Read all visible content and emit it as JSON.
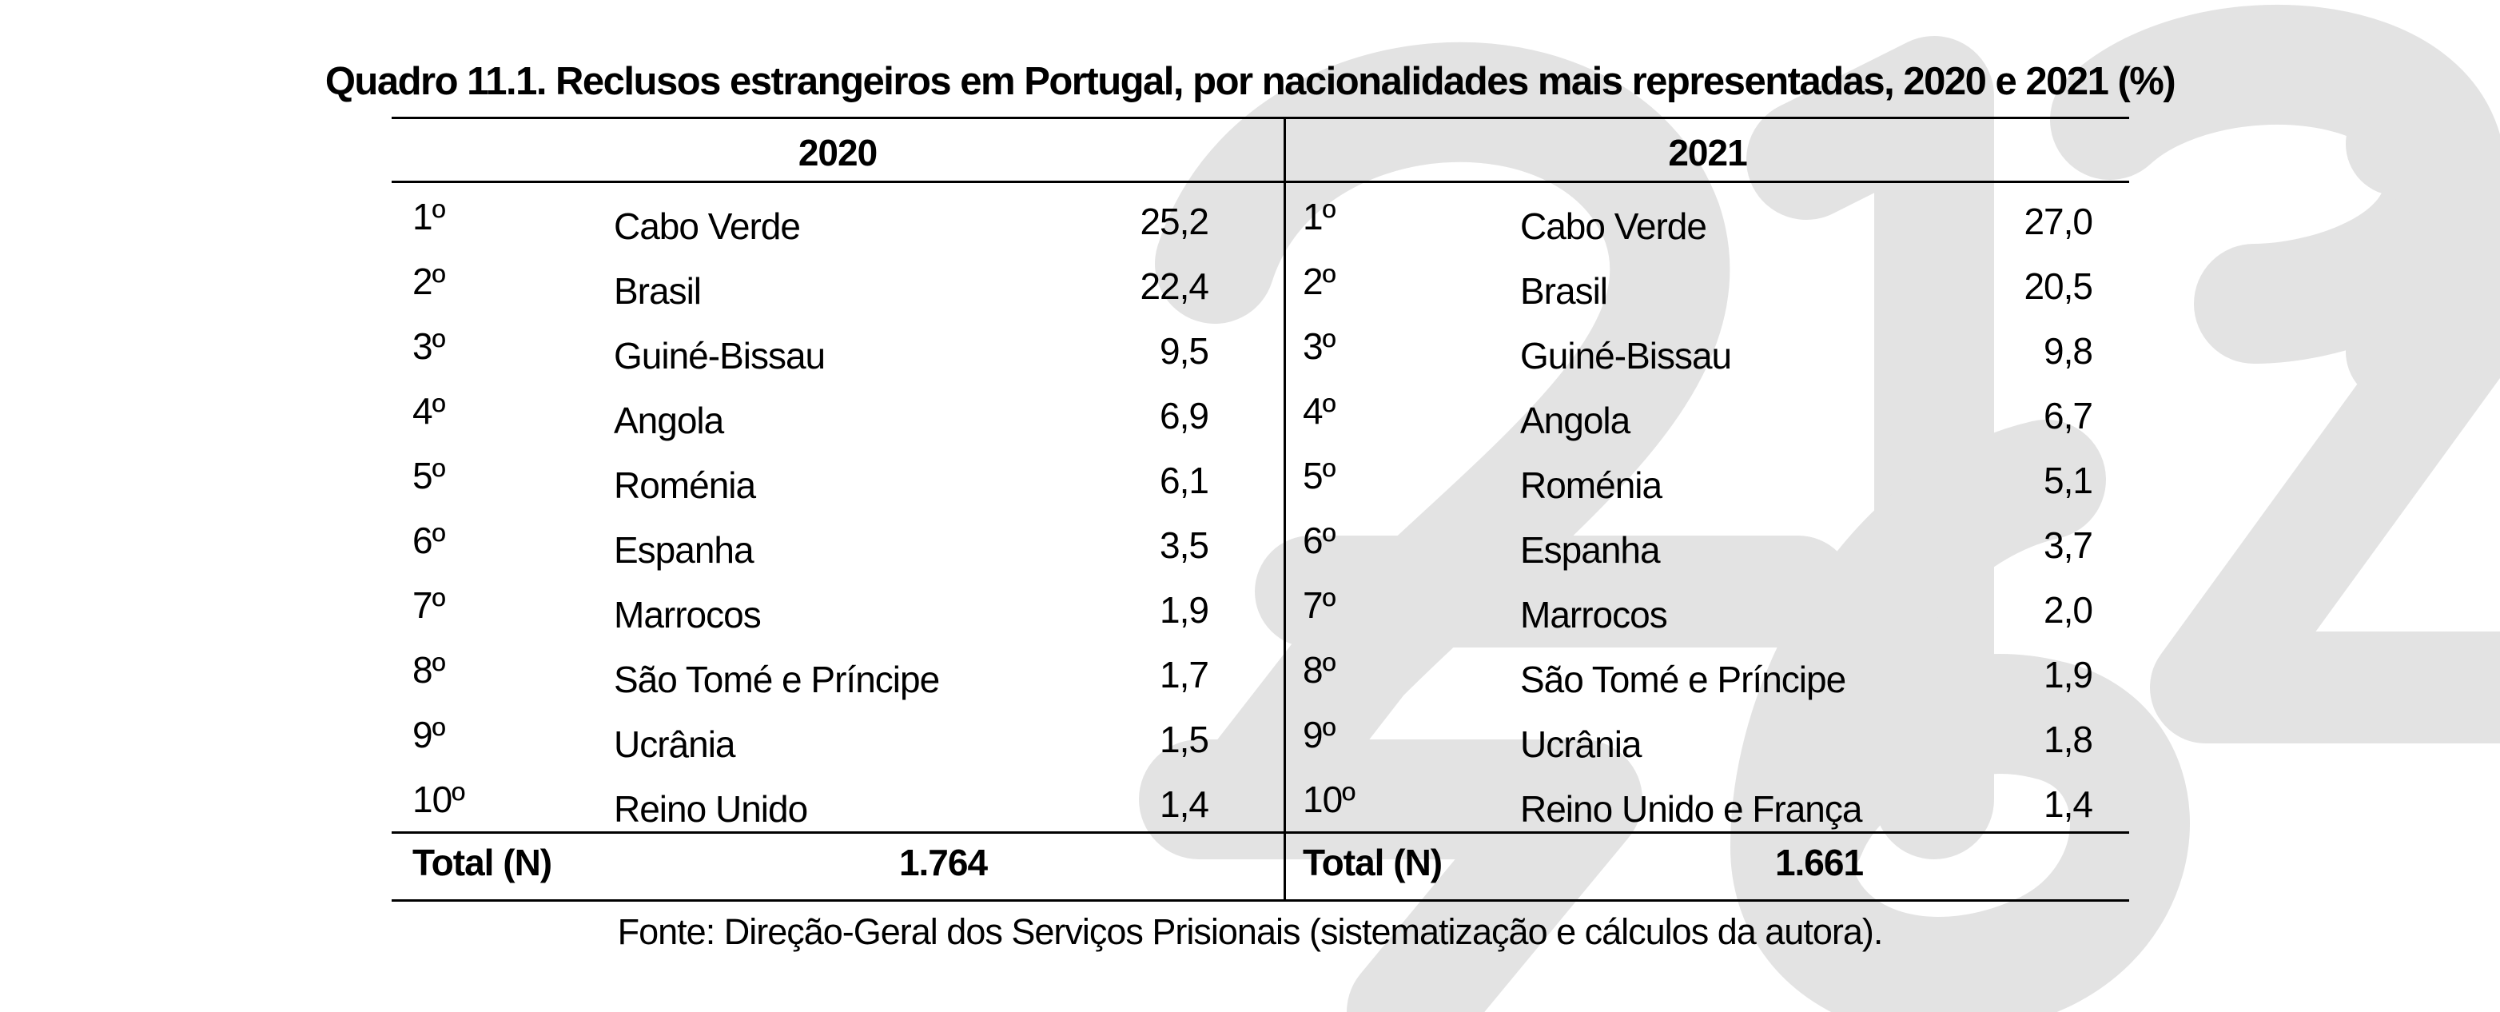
{
  "title": "Quadro 11.1. Reclusos estrangeiros em Portugal, por nacionalidades mais representadas, 2020 e 2021 (%)",
  "watermark_color": "#e3e3e3",
  "columns": [
    {
      "year": "2020",
      "rows": [
        {
          "rank": "1º",
          "country": "Cabo Verde",
          "value": "25,2"
        },
        {
          "rank": "2º",
          "country": "Brasil",
          "value": "22,4"
        },
        {
          "rank": "3º",
          "country": "Guiné-Bissau",
          "value": "9,5"
        },
        {
          "rank": "4º",
          "country": "Angola",
          "value": "6,9"
        },
        {
          "rank": "5º",
          "country": "Roménia",
          "value": "6,1"
        },
        {
          "rank": "6º",
          "country": "Espanha",
          "value": "3,5"
        },
        {
          "rank": "7º",
          "country": "Marrocos",
          "value": "1,9"
        },
        {
          "rank": "8º",
          "country": "São Tomé e Príncipe",
          "value": "1,7"
        },
        {
          "rank": "9º",
          "country": "Ucrânia",
          "value": "1,5"
        },
        {
          "rank": "10º",
          "country": "Reino Unido",
          "value": "1,4"
        }
      ],
      "total_label": "Total (N)",
      "total_value": "1.764"
    },
    {
      "year": "2021",
      "rows": [
        {
          "rank": "1º",
          "country": "Cabo Verde",
          "value": "27,0"
        },
        {
          "rank": "2º",
          "country": "Brasil",
          "value": "20,5"
        },
        {
          "rank": "3º",
          "country": "Guiné-Bissau",
          "value": "9,8"
        },
        {
          "rank": "4º",
          "country": "Angola",
          "value": "6,7"
        },
        {
          "rank": "5º",
          "country": "Roménia",
          "value": "5,1"
        },
        {
          "rank": "6º",
          "country": "Espanha",
          "value": "3,7"
        },
        {
          "rank": "7º",
          "country": "Marrocos",
          "value": "2,0"
        },
        {
          "rank": "8º",
          "country": "São Tomé e Príncipe",
          "value": "1,9"
        },
        {
          "rank": "9º",
          "country": "Ucrânia",
          "value": "1,8"
        },
        {
          "rank": "10º",
          "country": "Reino Unido e França",
          "value": "1,4"
        }
      ],
      "total_label": "Total (N)",
      "total_value": "1.661"
    }
  ],
  "source": "Fonte: Direção-Geral dos Serviços Prisionais (sistematização e cálculos da autora)."
}
